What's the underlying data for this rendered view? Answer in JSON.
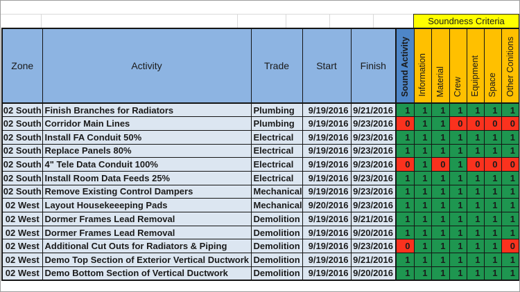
{
  "banner": {
    "label": "Soundness Criteria"
  },
  "table": {
    "main_headers": [
      "Zone",
      "Activity",
      "Trade",
      "Start",
      "Finish"
    ],
    "criteria_headers": [
      "Sound Activity",
      "Information",
      "Material",
      "Crew",
      "Equipment",
      "Space",
      "Other Conitions"
    ],
    "rows": [
      {
        "zone": "02 South",
        "activity": "Finish Branches for Radiators",
        "trade": "Plumbing",
        "start": "9/19/2016",
        "finish": "9/21/2016",
        "criteria": [
          1,
          1,
          1,
          1,
          1,
          1,
          1
        ]
      },
      {
        "zone": "02 South",
        "activity": "Corridor Main Lines",
        "trade": "Plumbing",
        "start": "9/19/2016",
        "finish": "9/23/2016",
        "criteria": [
          0,
          1,
          1,
          0,
          0,
          0,
          0
        ]
      },
      {
        "zone": "02 South",
        "activity": "Install FA Conduit 50%",
        "trade": "Electrical",
        "start": "9/19/2016",
        "finish": "9/23/2016",
        "criteria": [
          1,
          1,
          1,
          1,
          1,
          1,
          1
        ]
      },
      {
        "zone": "02 South",
        "activity": "Replace Panels 80%",
        "trade": "Electrical",
        "start": "9/19/2016",
        "finish": "9/23/2016",
        "criteria": [
          1,
          1,
          1,
          1,
          1,
          1,
          1
        ]
      },
      {
        "zone": "02 South",
        "activity": "4\" Tele Data Conduit 100%",
        "trade": "Electrical",
        "start": "9/19/2016",
        "finish": "9/23/2016",
        "criteria": [
          0,
          1,
          0,
          1,
          0,
          0,
          0
        ]
      },
      {
        "zone": "02 South",
        "activity": "Install Room Data Feeds 25%",
        "trade": "Electrical",
        "start": "9/19/2016",
        "finish": "9/23/2016",
        "criteria": [
          1,
          1,
          1,
          1,
          1,
          1,
          1
        ]
      },
      {
        "zone": "02 South",
        "activity": "Remove Existing Control Dampers",
        "trade": "Mechanical",
        "start": "9/19/2016",
        "finish": "9/23/2016",
        "criteria": [
          1,
          1,
          1,
          1,
          1,
          1,
          1
        ]
      },
      {
        "zone": "02 West",
        "activity": "Layout Housekeeeping Pads",
        "trade": "Mechanical",
        "start": "9/20/2016",
        "finish": "9/23/2016",
        "criteria": [
          1,
          1,
          1,
          1,
          1,
          1,
          1
        ]
      },
      {
        "zone": "02 West",
        "activity": "Dormer Frames Lead Removal",
        "trade": "Demolition",
        "start": "9/19/2016",
        "finish": "9/21/2016",
        "criteria": [
          1,
          1,
          1,
          1,
          1,
          1,
          1
        ]
      },
      {
        "zone": "02 West",
        "activity": "Dormer Frames Lead Removal",
        "trade": "Demolition",
        "start": "9/19/2016",
        "finish": "9/20/2016",
        "criteria": [
          1,
          1,
          1,
          1,
          1,
          1,
          1
        ]
      },
      {
        "zone": "02 West",
        "activity": "Additional Cut Outs for Radiators & Piping",
        "trade": "Demolition",
        "start": "9/19/2016",
        "finish": "9/23/2016",
        "criteria": [
          0,
          1,
          1,
          1,
          1,
          1,
          0
        ]
      },
      {
        "zone": "02 West",
        "activity": "Demo Top Section of Exterior Vertical Ductwork",
        "trade": "Demolition",
        "start": "9/19/2016",
        "finish": "9/21/2016",
        "criteria": [
          1,
          1,
          1,
          1,
          1,
          1,
          1
        ]
      },
      {
        "zone": "02 West",
        "activity": "Demo Bottom Section of Vertical Ductwork",
        "trade": "Demolition",
        "start": "9/19/2016",
        "finish": "9/20/2016",
        "criteria": [
          1,
          1,
          1,
          1,
          1,
          1,
          1
        ]
      }
    ]
  },
  "colors": {
    "header_blue": "#8db4e2",
    "sound_activity_blue": "#4e86c8",
    "criteria_orange": "#ffc000",
    "banner_yellow": "#ffff00",
    "row_light_blue": "#dce6f1",
    "pass_green": "#1e9650",
    "fail_red": "#fa321e"
  }
}
